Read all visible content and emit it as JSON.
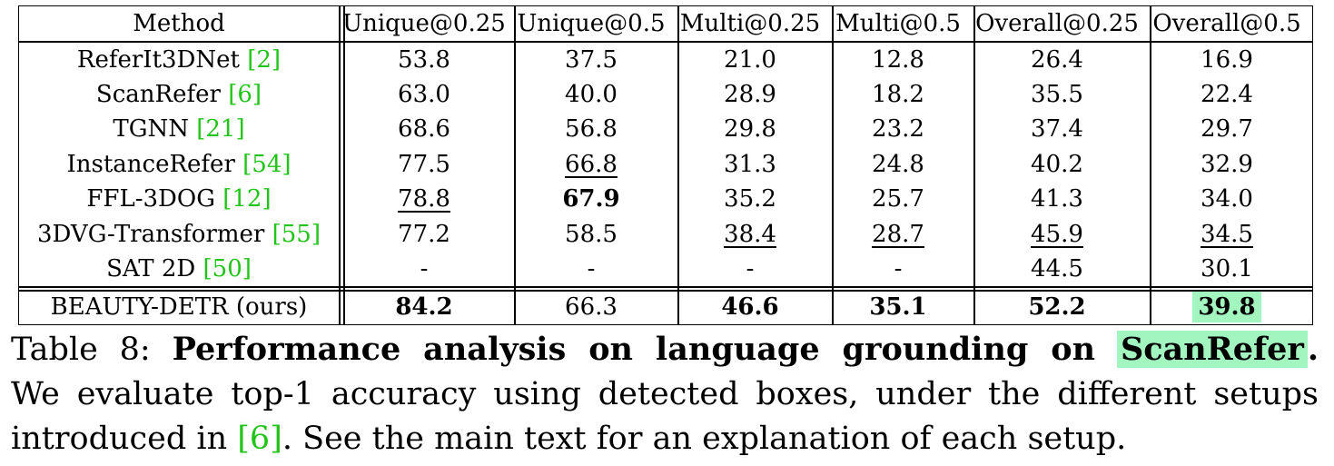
{
  "table": {
    "headers": [
      "Method",
      "Unique@0.25",
      "Unique@0.5",
      "Multi@0.25",
      "Multi@0.5",
      "Overall@0.25",
      "Overall@0.5"
    ],
    "rows": [
      {
        "method": "ReferIt3DNet",
        "ref": "[2]",
        "values": [
          "53.8",
          "37.5",
          "21.0",
          "12.8",
          "26.4",
          "16.9"
        ]
      },
      {
        "method": "ScanRefer",
        "ref": "[6]",
        "values": [
          "63.0",
          "40.0",
          "28.9",
          "18.2",
          "35.5",
          "22.4"
        ]
      },
      {
        "method": "TGNN",
        "ref": "[21]",
        "values": [
          "68.6",
          "56.8",
          "29.8",
          "23.2",
          "37.4",
          "29.7"
        ]
      },
      {
        "method": "InstanceRefer",
        "ref": "[54]",
        "values": [
          "77.5",
          "66.8",
          "31.3",
          "24.8",
          "40.2",
          "32.9"
        ]
      },
      {
        "method": "FFL-3DOG",
        "ref": "[12]",
        "values": [
          "78.8",
          "67.9",
          "35.2",
          "25.7",
          "41.3",
          "34.0"
        ]
      },
      {
        "method": "3DVG-Transformer",
        "ref": "[55]",
        "values": [
          "77.2",
          "58.5",
          "38.4",
          "28.7",
          "45.9",
          "34.5"
        ]
      },
      {
        "method": "SAT 2D",
        "ref": "[50]",
        "values": [
          "-",
          "-",
          "-",
          "-",
          "44.5",
          "30.1"
        ]
      },
      {
        "method": "BEAUTY-DETR (ours)",
        "ref": "",
        "values": [
          "84.2",
          "66.3",
          "46.6",
          "35.1",
          "52.2",
          "39.8"
        ]
      }
    ],
    "highlight_color": "#a3f5c0",
    "ref_color": "#22c41a"
  },
  "caption": {
    "label": "Table 8:",
    "bold_title": "Performance analysis on language grounding on",
    "highlight_word": "ScanRefer",
    "period": ".",
    "line2": "We evaluate top-1 accuracy using detected boxes, under the different setups",
    "line3_pre": "introduced in",
    "line3_ref": "[6]",
    "line3_post": ". See the main text for an explanation of each setup."
  }
}
